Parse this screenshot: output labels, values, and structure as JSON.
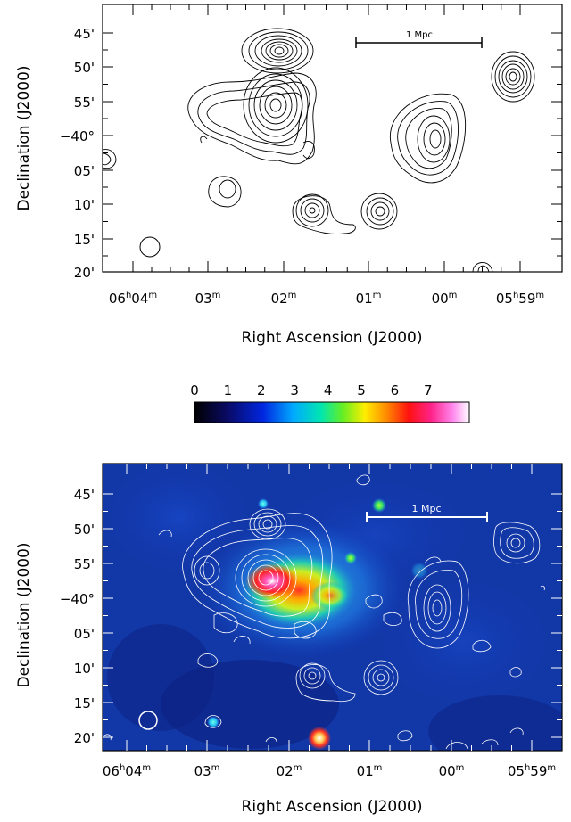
{
  "top_panel": {
    "scale_bar_label": "1 Mpc",
    "x_axis_label": "Right Ascension (J2000)",
    "y_axis_label": "Declination (J2000)",
    "x_tick_labels": [
      {
        "h": "06",
        "hs": "h",
        "m": "04",
        "ms": "m"
      },
      {
        "h": "",
        "hs": "",
        "m": "03",
        "ms": "m"
      },
      {
        "h": "",
        "hs": "",
        "m": "02",
        "ms": "m"
      },
      {
        "h": "",
        "hs": "",
        "m": "01",
        "ms": "m"
      },
      {
        "h": "",
        "hs": "",
        "m": "00",
        "ms": "m"
      },
      {
        "h": "05",
        "hs": "h",
        "m": "59",
        "ms": "m"
      }
    ],
    "y_tick_labels": [
      "45'",
      "50'",
      "55'",
      "−40°",
      "05'",
      "10'",
      "15'",
      "20'"
    ]
  },
  "colorbar": {
    "tick_labels": [
      "0",
      "1",
      "2",
      "3",
      "4",
      "5",
      "6",
      "7"
    ]
  },
  "bottom_panel": {
    "scale_bar_label": "1 Mpc",
    "x_axis_label": "Right Ascension (J2000)",
    "y_axis_label": "Declination (J2000)",
    "x_tick_labels": [
      {
        "h": "06",
        "hs": "h",
        "m": "04",
        "ms": "m"
      },
      {
        "h": "",
        "hs": "",
        "m": "03",
        "ms": "m"
      },
      {
        "h": "",
        "hs": "",
        "m": "02",
        "ms": "m"
      },
      {
        "h": "",
        "hs": "",
        "m": "01",
        "ms": "m"
      },
      {
        "h": "",
        "hs": "",
        "m": "00",
        "ms": "m"
      },
      {
        "h": "05",
        "hs": "h",
        "m": "59",
        "ms": "m"
      }
    ],
    "y_tick_labels": [
      "45'",
      "50'",
      "55'",
      "−40°",
      "05'",
      "10'",
      "15'",
      "20'"
    ]
  }
}
